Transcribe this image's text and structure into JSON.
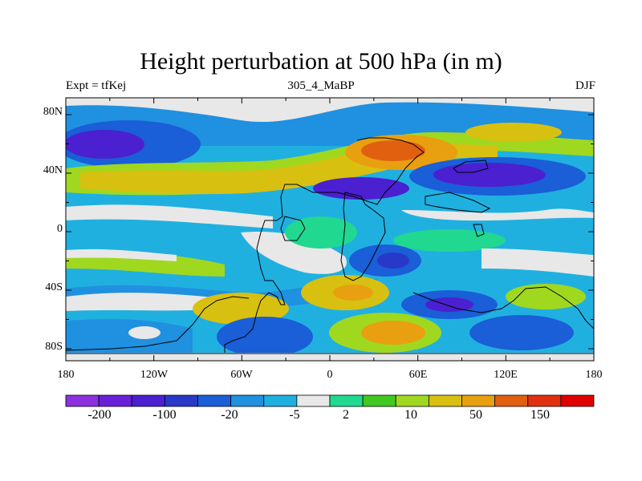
{
  "title": "Height perturbation at 500 hPa (in m)",
  "subtitle_left": "Expt = tfKej",
  "subtitle_center": "305_4_MaBP",
  "subtitle_right": "DJF",
  "lat_labels": [
    "80N",
    "40N",
    "0",
    "40S",
    "80S"
  ],
  "lon_labels": [
    "180",
    "120W",
    "60W",
    "0",
    "60E",
    "120E",
    "180"
  ],
  "colorbar": {
    "colors": [
      "#8c30e0",
      "#6a20d8",
      "#4a20d0",
      "#2838c8",
      "#1a5ed8",
      "#2090e0",
      "#20b0e0",
      "#e8e8e8",
      "#20d890",
      "#40c820",
      "#a0d820",
      "#d8c010",
      "#e8a010",
      "#e06010",
      "#e03010",
      "#e00000"
    ],
    "labels": [
      "-200",
      "-100",
      "-20",
      "-5",
      "2",
      "10",
      "50",
      "150"
    ]
  },
  "map_colors": {
    "neg_strong": "#4a20d0",
    "neg_mid": "#1a5ed8",
    "neg_weak": "#2090e0",
    "neg_light": "#20b0e0",
    "neutral": "#e8e8e8",
    "pos_light": "#20d890",
    "pos_weak": "#40c820",
    "pos_mid": "#a0d820",
    "pos_yellow": "#d8c010",
    "pos_orange": "#e8a010",
    "pos_strong": "#e06010"
  }
}
